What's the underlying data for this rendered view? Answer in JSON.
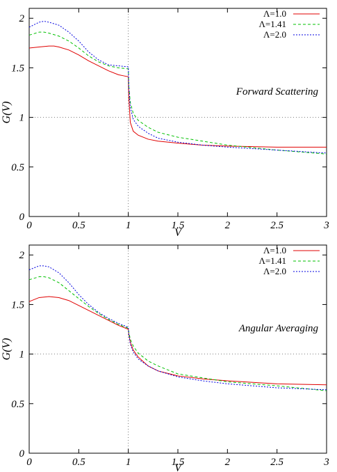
{
  "chart_data": [
    {
      "type": "line",
      "annotation": "Forward Scattering",
      "xlabel": "V",
      "ylabel": "G(V)",
      "xlim": [
        0,
        3
      ],
      "ylim": [
        0,
        2.1
      ],
      "xticks": [
        "0",
        "0.5",
        "1",
        "1.5",
        "2",
        "2.5",
        "3"
      ],
      "yticks": [
        "0",
        "0.5",
        "1",
        "1.5",
        "2"
      ],
      "reference_lines": {
        "y": 1.0,
        "x": 1.0
      },
      "legend_position": "top-right",
      "series": [
        {
          "name": "Λ=1.0",
          "color": "#e00000",
          "dash": "solid",
          "x": [
            0,
            0.1,
            0.2,
            0.25,
            0.3,
            0.4,
            0.5,
            0.6,
            0.7,
            0.8,
            0.9,
            0.95,
            1.0,
            1.005,
            1.02,
            1.05,
            1.1,
            1.2,
            1.3,
            1.5,
            1.75,
            2.0,
            2.5,
            3.0
          ],
          "y": [
            1.7,
            1.71,
            1.72,
            1.72,
            1.71,
            1.68,
            1.63,
            1.57,
            1.52,
            1.47,
            1.43,
            1.42,
            1.41,
            1.2,
            0.95,
            0.86,
            0.82,
            0.78,
            0.76,
            0.74,
            0.72,
            0.71,
            0.7,
            0.7
          ]
        },
        {
          "name": "Λ=1.41",
          "color": "#00c000",
          "dash": "4,3",
          "x": [
            0,
            0.1,
            0.15,
            0.2,
            0.3,
            0.4,
            0.5,
            0.6,
            0.7,
            0.8,
            0.9,
            1.0,
            1.005,
            1.02,
            1.05,
            1.1,
            1.2,
            1.3,
            1.5,
            1.75,
            2.0,
            2.5,
            3.0
          ],
          "y": [
            1.83,
            1.86,
            1.86,
            1.85,
            1.82,
            1.77,
            1.7,
            1.62,
            1.56,
            1.52,
            1.5,
            1.49,
            1.32,
            1.15,
            1.04,
            0.97,
            0.9,
            0.85,
            0.8,
            0.76,
            0.72,
            0.67,
            0.63
          ]
        },
        {
          "name": "Λ=2.0",
          "color": "#0000e0",
          "dash": "2,2",
          "x": [
            0,
            0.1,
            0.15,
            0.2,
            0.3,
            0.4,
            0.5,
            0.6,
            0.7,
            0.8,
            0.9,
            1.0,
            1.005,
            1.02,
            1.05,
            1.1,
            1.2,
            1.3,
            1.5,
            1.75,
            2.0,
            2.5,
            3.0
          ],
          "y": [
            1.91,
            1.96,
            1.97,
            1.96,
            1.93,
            1.86,
            1.77,
            1.66,
            1.58,
            1.53,
            1.52,
            1.51,
            1.3,
            1.1,
            0.98,
            0.91,
            0.84,
            0.79,
            0.75,
            0.72,
            0.7,
            0.67,
            0.64
          ]
        }
      ]
    },
    {
      "type": "line",
      "annotation": "Angular Averaging",
      "xlabel": "V",
      "ylabel": "G(V)",
      "xlim": [
        0,
        3
      ],
      "ylim": [
        0,
        2.1
      ],
      "xticks": [
        "0",
        "0.5",
        "1",
        "1.5",
        "2",
        "2.5",
        "3"
      ],
      "yticks": [
        "0",
        "0.5",
        "1",
        "1.5",
        "2"
      ],
      "reference_lines": {
        "y": 1.0,
        "x": 1.0
      },
      "legend_position": "top-right",
      "series": [
        {
          "name": "Λ=1.0",
          "color": "#e00000",
          "dash": "solid",
          "x": [
            0,
            0.1,
            0.2,
            0.3,
            0.4,
            0.5,
            0.6,
            0.7,
            0.8,
            0.9,
            1.0,
            1.005,
            1.02,
            1.05,
            1.1,
            1.2,
            1.3,
            1.5,
            1.75,
            2.0,
            2.5,
            3.0
          ],
          "y": [
            1.53,
            1.57,
            1.58,
            1.57,
            1.54,
            1.49,
            1.44,
            1.39,
            1.34,
            1.29,
            1.25,
            1.2,
            1.12,
            1.04,
            0.97,
            0.88,
            0.83,
            0.78,
            0.75,
            0.73,
            0.7,
            0.69
          ]
        },
        {
          "name": "Λ=1.41",
          "color": "#00c000",
          "dash": "4,3",
          "x": [
            0,
            0.1,
            0.15,
            0.2,
            0.3,
            0.4,
            0.5,
            0.6,
            0.7,
            0.8,
            0.9,
            1.0,
            1.005,
            1.02,
            1.05,
            1.1,
            1.2,
            1.3,
            1.5,
            1.75,
            2.0,
            2.5,
            3.0
          ],
          "y": [
            1.75,
            1.78,
            1.78,
            1.77,
            1.72,
            1.64,
            1.56,
            1.48,
            1.41,
            1.35,
            1.3,
            1.26,
            1.22,
            1.15,
            1.08,
            1.01,
            0.93,
            0.88,
            0.8,
            0.76,
            0.72,
            0.68,
            0.63
          ]
        },
        {
          "name": "Λ=2.0",
          "color": "#0000e0",
          "dash": "2,2",
          "x": [
            0,
            0.1,
            0.15,
            0.2,
            0.3,
            0.4,
            0.5,
            0.6,
            0.7,
            0.8,
            0.9,
            1.0,
            1.005,
            1.02,
            1.05,
            1.1,
            1.2,
            1.3,
            1.5,
            1.75,
            2.0,
            2.5,
            3.0
          ],
          "y": [
            1.85,
            1.89,
            1.89,
            1.88,
            1.82,
            1.72,
            1.6,
            1.5,
            1.42,
            1.36,
            1.31,
            1.27,
            1.2,
            1.1,
            1.02,
            0.95,
            0.88,
            0.83,
            0.77,
            0.73,
            0.7,
            0.66,
            0.64
          ]
        }
      ]
    }
  ]
}
